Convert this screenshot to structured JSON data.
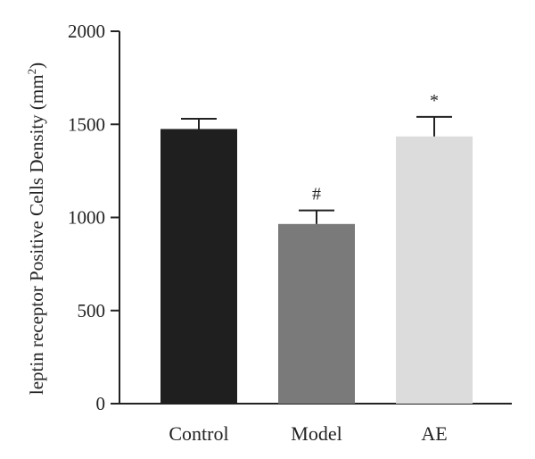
{
  "chart_data": {
    "type": "bar",
    "categories": [
      "Control",
      "Model",
      "AE"
    ],
    "values": [
      1475,
      965,
      1435
    ],
    "error_upper": [
      1530,
      1038,
      1540
    ],
    "annotations": [
      "",
      "#",
      "*"
    ],
    "colors": [
      "#1f1f1f",
      "#7a7a7a",
      "#dcdcdc"
    ],
    "ylabel": {
      "main": "leptin receptor Positive Cells Density (mm",
      "sup": "2",
      "close": ")"
    },
    "ylim": [
      0,
      2000
    ],
    "yticks": [
      0,
      500,
      1000,
      1500,
      2000
    ],
    "ytick_labels": [
      "0",
      "500",
      "1000",
      "1500",
      "2000"
    ],
    "grid": false
  }
}
